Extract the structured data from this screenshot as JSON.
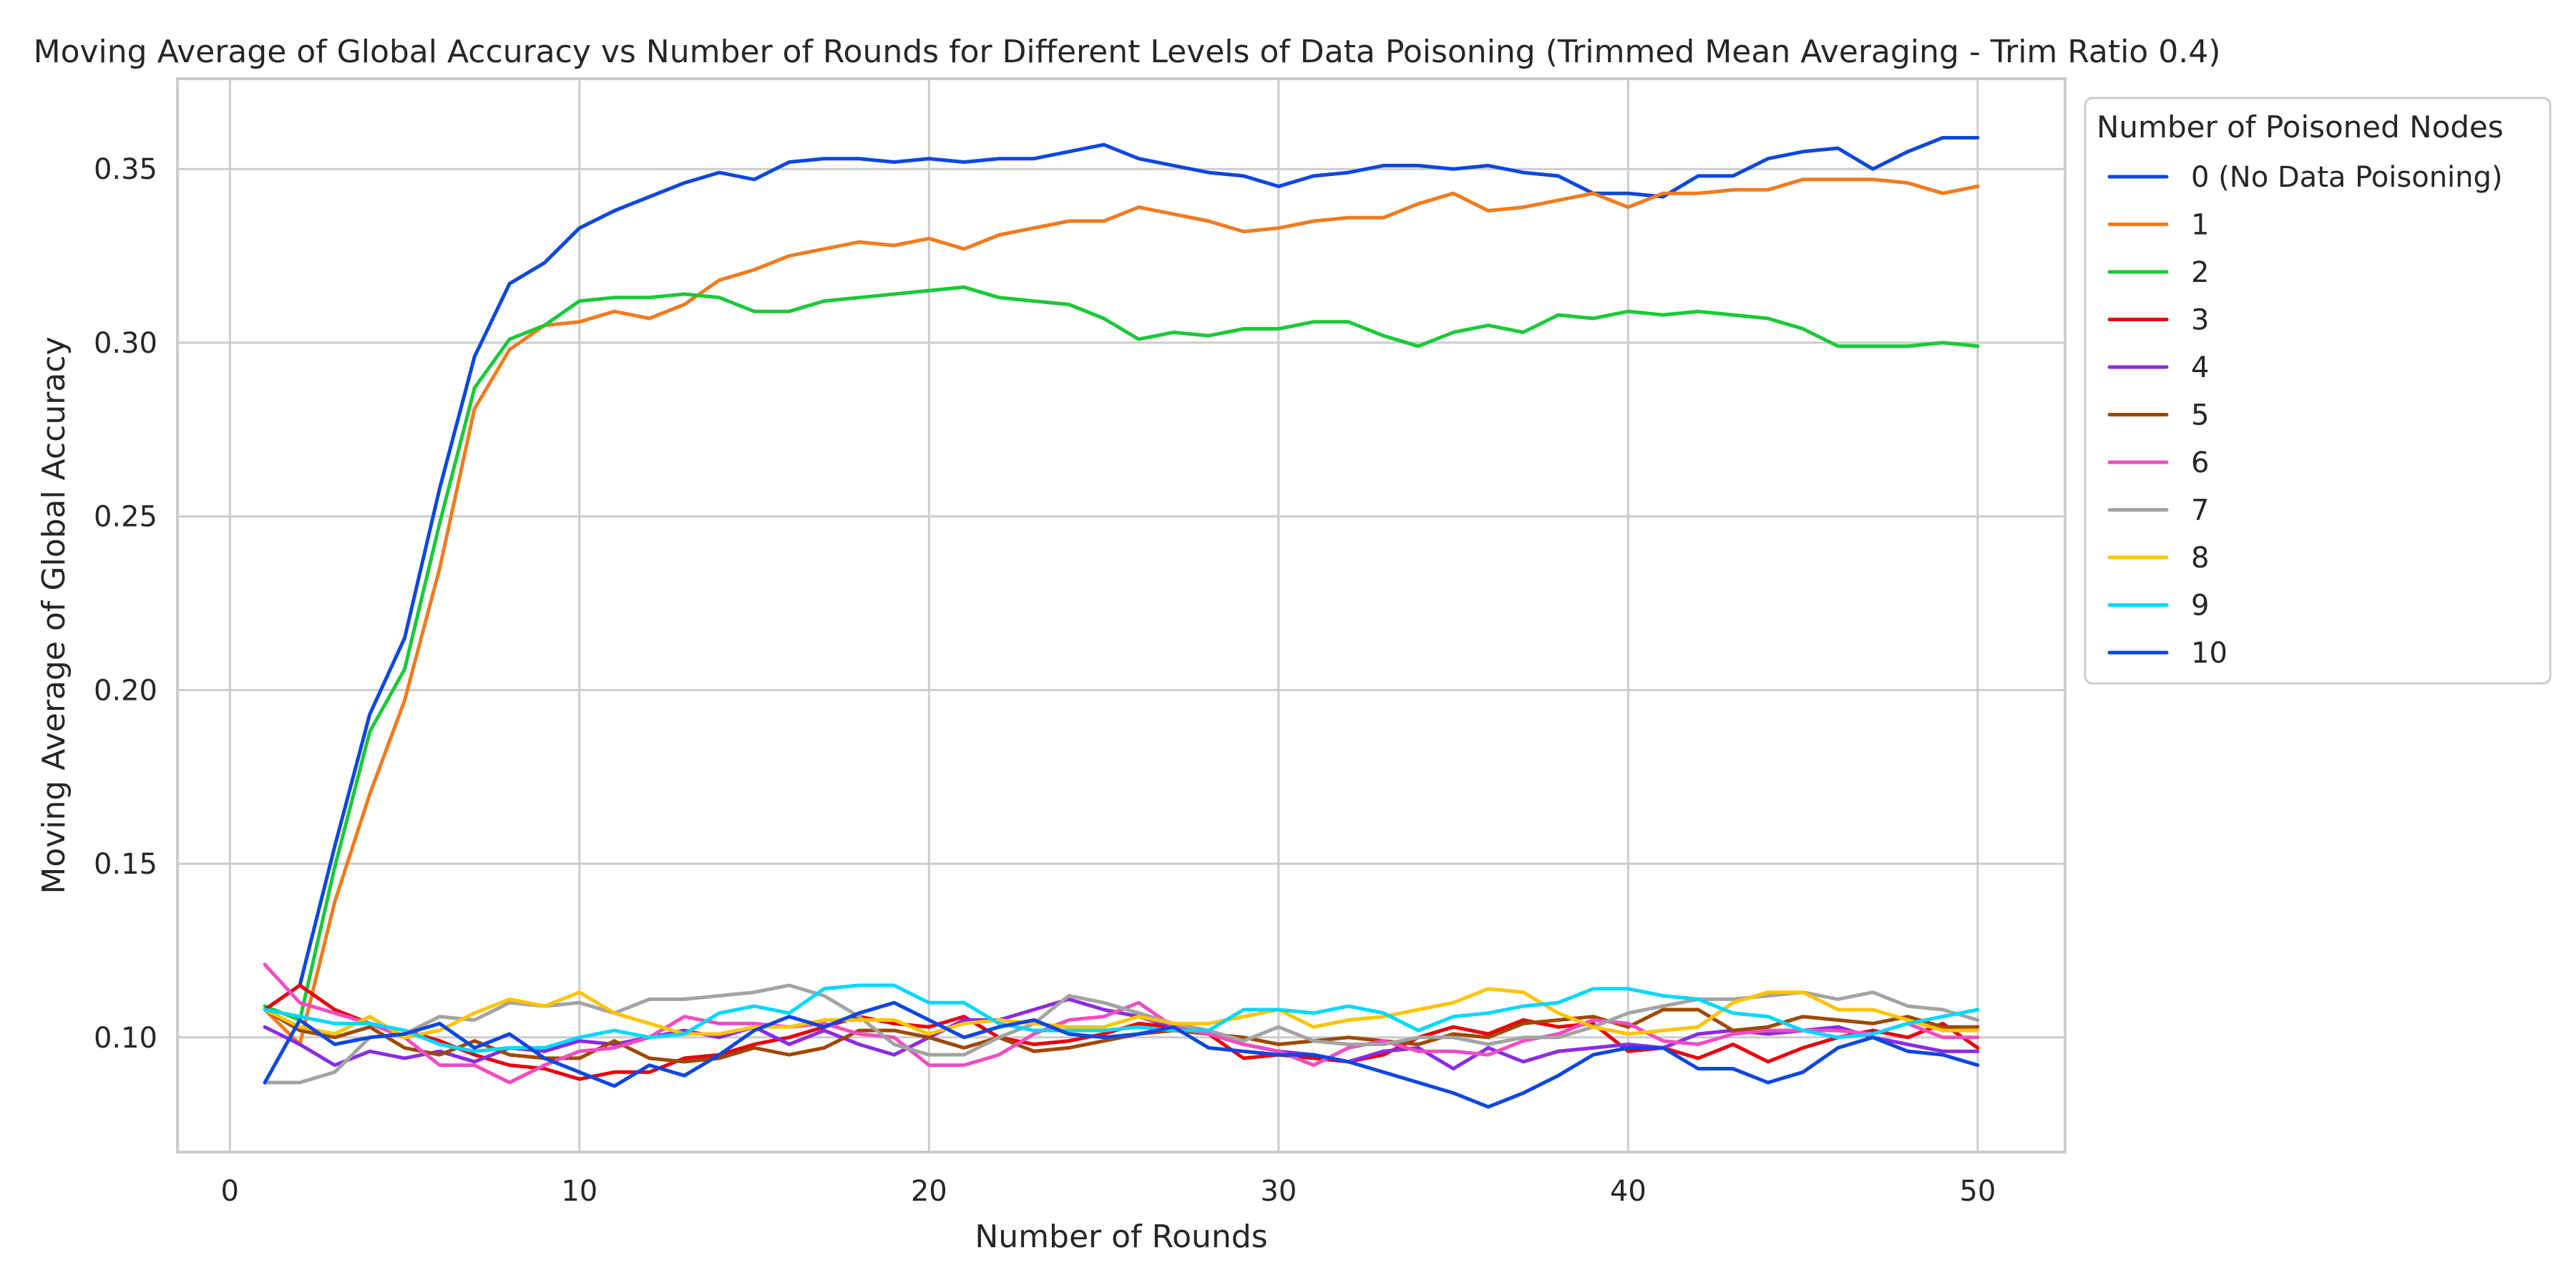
{
  "chart_data": {
    "type": "line",
    "title": "Moving Average of Global Accuracy vs Number of Rounds for Different Levels of Data Poisoning (Trimmed Mean Averaging - Trim Ratio 0.4)",
    "xlabel": "Number of Rounds",
    "ylabel": "Moving Average of Global Accuracy",
    "xlim": [
      -1.5,
      52.5
    ],
    "ylim": [
      0.067,
      0.376
    ],
    "xticks": [
      0,
      10,
      20,
      30,
      40,
      50
    ],
    "xtick_labels": [
      "0",
      "10",
      "20",
      "30",
      "40",
      "50"
    ],
    "yticks": [
      0.1,
      0.15,
      0.2,
      0.25,
      0.3,
      0.35
    ],
    "ytick_labels": [
      "0.10",
      "0.15",
      "0.20",
      "0.25",
      "0.30",
      "0.35"
    ],
    "grid": true,
    "legend": {
      "title": "Number of Poisoned Nodes",
      "position": "outside-right"
    },
    "x": [
      1,
      2,
      3,
      4,
      5,
      6,
      7,
      8,
      9,
      10,
      11,
      12,
      13,
      14,
      15,
      16,
      17,
      18,
      19,
      20,
      21,
      22,
      23,
      24,
      25,
      26,
      27,
      28,
      29,
      30,
      31,
      32,
      33,
      34,
      35,
      36,
      37,
      38,
      39,
      40,
      41,
      42,
      43,
      44,
      45,
      46,
      47,
      48,
      49,
      50
    ],
    "series": [
      {
        "name": "0 (No Data Poisoning)",
        "color": "#0d47e0",
        "values": [
          0.108,
          0.115,
          0.155,
          0.193,
          0.215,
          0.258,
          0.296,
          0.317,
          0.323,
          0.333,
          0.338,
          0.342,
          0.346,
          0.349,
          0.347,
          0.352,
          0.353,
          0.353,
          0.352,
          0.353,
          0.352,
          0.353,
          0.353,
          0.355,
          0.357,
          0.353,
          0.351,
          0.349,
          0.348,
          0.345,
          0.348,
          0.349,
          0.351,
          0.351,
          0.35,
          0.351,
          0.349,
          0.348,
          0.343,
          0.343,
          0.342,
          0.348,
          0.348,
          0.353,
          0.355,
          0.356,
          0.35,
          0.355,
          0.359,
          0.359
        ]
      },
      {
        "name": "1",
        "color": "#f07b1f",
        "values": [
          0.108,
          0.098,
          0.139,
          0.17,
          0.197,
          0.235,
          0.281,
          0.298,
          0.305,
          0.306,
          0.309,
          0.307,
          0.311,
          0.318,
          0.321,
          0.325,
          0.327,
          0.329,
          0.328,
          0.33,
          0.327,
          0.331,
          0.333,
          0.335,
          0.335,
          0.339,
          0.337,
          0.335,
          0.332,
          0.333,
          0.335,
          0.336,
          0.336,
          0.34,
          0.343,
          0.338,
          0.339,
          0.341,
          0.343,
          0.339,
          0.343,
          0.343,
          0.344,
          0.344,
          0.347,
          0.347,
          0.347,
          0.346,
          0.343,
          0.345
        ]
      },
      {
        "name": "2",
        "color": "#1ac938",
        "values": [
          0.109,
          0.105,
          0.149,
          0.188,
          0.206,
          0.248,
          0.287,
          0.301,
          0.305,
          0.312,
          0.313,
          0.313,
          0.314,
          0.313,
          0.309,
          0.309,
          0.312,
          0.313,
          0.314,
          0.315,
          0.316,
          0.313,
          0.312,
          0.311,
          0.307,
          0.301,
          0.303,
          0.302,
          0.304,
          0.304,
          0.306,
          0.306,
          0.302,
          0.299,
          0.303,
          0.305,
          0.303,
          0.308,
          0.307,
          0.309,
          0.308,
          0.309,
          0.308,
          0.307,
          0.304,
          0.299,
          0.299,
          0.299,
          0.3,
          0.299
        ]
      },
      {
        "name": "3",
        "color": "#e8000b",
        "values": [
          0.108,
          0.115,
          0.108,
          0.104,
          0.102,
          0.099,
          0.095,
          0.092,
          0.091,
          0.088,
          0.09,
          0.09,
          0.094,
          0.095,
          0.098,
          0.1,
          0.103,
          0.106,
          0.104,
          0.103,
          0.106,
          0.1,
          0.098,
          0.099,
          0.101,
          0.104,
          0.103,
          0.101,
          0.094,
          0.095,
          0.094,
          0.093,
          0.095,
          0.1,
          0.103,
          0.101,
          0.105,
          0.103,
          0.104,
          0.096,
          0.097,
          0.094,
          0.098,
          0.093,
          0.097,
          0.1,
          0.102,
          0.1,
          0.104,
          0.097
        ]
      },
      {
        "name": "4",
        "color": "#8b2be2",
        "values": [
          0.103,
          0.098,
          0.092,
          0.096,
          0.094,
          0.096,
          0.093,
          0.097,
          0.096,
          0.099,
          0.098,
          0.1,
          0.102,
          0.1,
          0.103,
          0.098,
          0.102,
          0.098,
          0.095,
          0.1,
          0.105,
          0.105,
          0.108,
          0.111,
          0.108,
          0.106,
          0.103,
          0.101,
          0.098,
          0.096,
          0.095,
          0.093,
          0.096,
          0.097,
          0.091,
          0.097,
          0.093,
          0.096,
          0.097,
          0.098,
          0.097,
          0.101,
          0.102,
          0.101,
          0.102,
          0.103,
          0.1,
          0.098,
          0.096,
          0.096
        ]
      },
      {
        "name": "5",
        "color": "#9f4800",
        "values": [
          0.108,
          0.102,
          0.1,
          0.103,
          0.097,
          0.095,
          0.099,
          0.095,
          0.094,
          0.094,
          0.099,
          0.094,
          0.093,
          0.094,
          0.097,
          0.095,
          0.097,
          0.102,
          0.102,
          0.1,
          0.097,
          0.1,
          0.096,
          0.097,
          0.099,
          0.101,
          0.102,
          0.101,
          0.1,
          0.098,
          0.099,
          0.1,
          0.099,
          0.098,
          0.101,
          0.1,
          0.104,
          0.105,
          0.106,
          0.103,
          0.108,
          0.108,
          0.102,
          0.103,
          0.106,
          0.105,
          0.104,
          0.106,
          0.103,
          0.103
        ]
      },
      {
        "name": "6",
        "color": "#f14cc1",
        "values": [
          0.121,
          0.11,
          0.107,
          0.104,
          0.1,
          0.092,
          0.092,
          0.087,
          0.092,
          0.096,
          0.097,
          0.1,
          0.106,
          0.104,
          0.104,
          0.103,
          0.104,
          0.101,
          0.1,
          0.092,
          0.092,
          0.095,
          0.101,
          0.105,
          0.106,
          0.11,
          0.103,
          0.101,
          0.098,
          0.096,
          0.092,
          0.097,
          0.099,
          0.096,
          0.096,
          0.095,
          0.099,
          0.101,
          0.105,
          0.104,
          0.099,
          0.098,
          0.101,
          0.102,
          0.102,
          0.102,
          0.101,
          0.104,
          0.1,
          0.1
        ]
      },
      {
        "name": "7",
        "color": "#a3a3a3",
        "values": [
          0.087,
          0.087,
          0.09,
          0.1,
          0.101,
          0.106,
          0.105,
          0.11,
          0.109,
          0.11,
          0.107,
          0.111,
          0.111,
          0.112,
          0.113,
          0.115,
          0.112,
          0.106,
          0.098,
          0.095,
          0.095,
          0.1,
          0.104,
          0.112,
          0.11,
          0.107,
          0.104,
          0.102,
          0.099,
          0.103,
          0.099,
          0.098,
          0.098,
          0.1,
          0.1,
          0.098,
          0.1,
          0.1,
          0.103,
          0.107,
          0.109,
          0.111,
          0.111,
          0.112,
          0.113,
          0.111,
          0.113,
          0.109,
          0.108,
          0.105
        ]
      },
      {
        "name": "8",
        "color": "#ffc400",
        "values": [
          0.108,
          0.103,
          0.101,
          0.106,
          0.1,
          0.102,
          0.107,
          0.111,
          0.109,
          0.113,
          0.107,
          0.104,
          0.101,
          0.101,
          0.103,
          0.103,
          0.105,
          0.105,
          0.105,
          0.101,
          0.104,
          0.105,
          0.104,
          0.103,
          0.103,
          0.106,
          0.104,
          0.104,
          0.106,
          0.108,
          0.103,
          0.105,
          0.106,
          0.108,
          0.11,
          0.114,
          0.113,
          0.107,
          0.103,
          0.101,
          0.102,
          0.103,
          0.11,
          0.113,
          0.113,
          0.108,
          0.108,
          0.105,
          0.102,
          0.102
        ]
      },
      {
        "name": "9",
        "color": "#00d7ff",
        "values": [
          0.108,
          0.106,
          0.104,
          0.104,
          0.102,
          0.098,
          0.096,
          0.097,
          0.097,
          0.1,
          0.102,
          0.1,
          0.101,
          0.107,
          0.109,
          0.107,
          0.114,
          0.115,
          0.115,
          0.11,
          0.11,
          0.104,
          0.102,
          0.102,
          0.102,
          0.103,
          0.102,
          0.102,
          0.108,
          0.108,
          0.107,
          0.109,
          0.107,
          0.102,
          0.106,
          0.107,
          0.109,
          0.11,
          0.114,
          0.114,
          0.112,
          0.111,
          0.107,
          0.106,
          0.102,
          0.1,
          0.101,
          0.104,
          0.106,
          0.108
        ]
      },
      {
        "name": "10",
        "color": "#0d47e0",
        "values": [
          0.087,
          0.105,
          0.098,
          0.1,
          0.101,
          0.104,
          0.097,
          0.101,
          0.094,
          0.09,
          0.086,
          0.092,
          0.089,
          0.095,
          0.102,
          0.106,
          0.103,
          0.107,
          0.11,
          0.105,
          0.1,
          0.103,
          0.105,
          0.101,
          0.1,
          0.101,
          0.103,
          0.097,
          0.096,
          0.095,
          0.095,
          0.093,
          0.09,
          0.087,
          0.084,
          0.08,
          0.084,
          0.089,
          0.095,
          0.097,
          0.097,
          0.091,
          0.091,
          0.087,
          0.09,
          0.097,
          0.1,
          0.096,
          0.095,
          0.092
        ]
      }
    ]
  }
}
